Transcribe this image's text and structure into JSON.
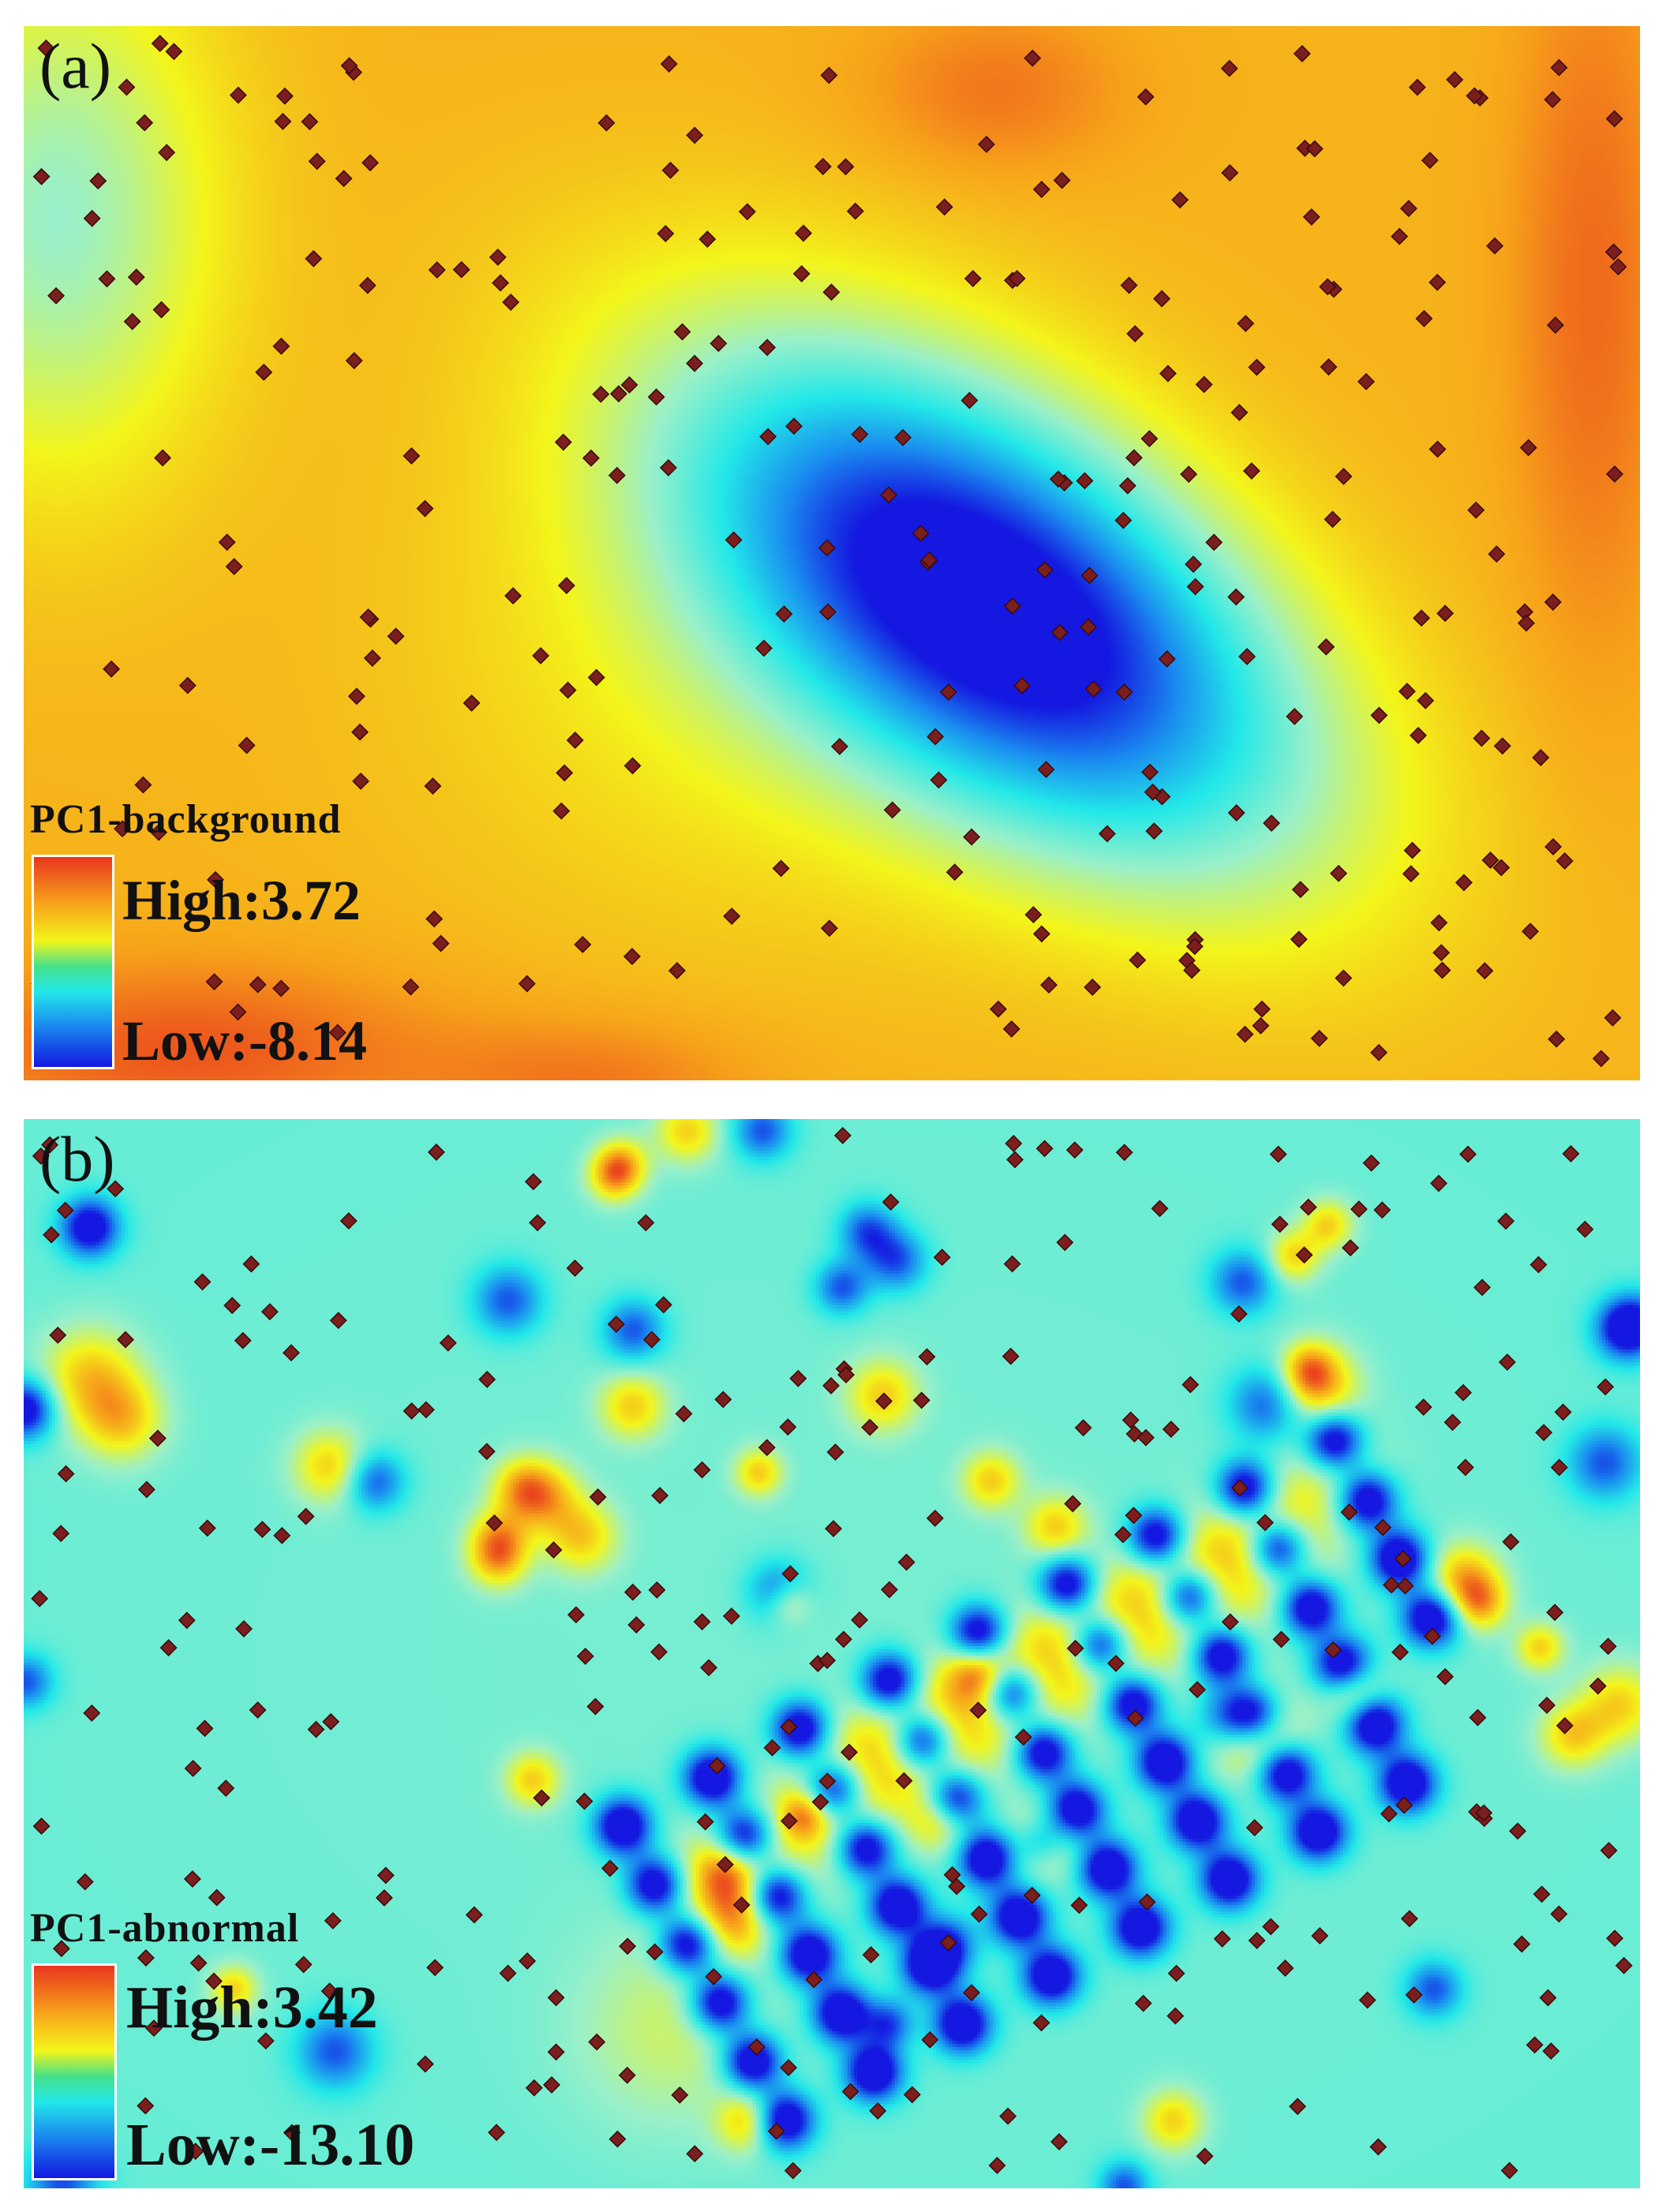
{
  "panels": [
    {
      "id": "a",
      "label": "(a)",
      "legend": {
        "title": "PC1-background",
        "high": "High:3.72",
        "low": "Low:-8.14"
      }
    },
    {
      "id": "b",
      "label": "(b)",
      "legend": {
        "title": "PC1-abnormal",
        "high": "High:3.42",
        "low": "Low:-13.10"
      }
    }
  ],
  "colors": {
    "ramp": [
      "#1418e0",
      "#1a8cf0",
      "#22e8e8",
      "#9af0c8",
      "#f3f51a",
      "#f7a21a",
      "#e8361e"
    ],
    "sample_point": "#7a1e1e"
  },
  "icons": {
    "sample_point": "diamond-icon"
  }
}
